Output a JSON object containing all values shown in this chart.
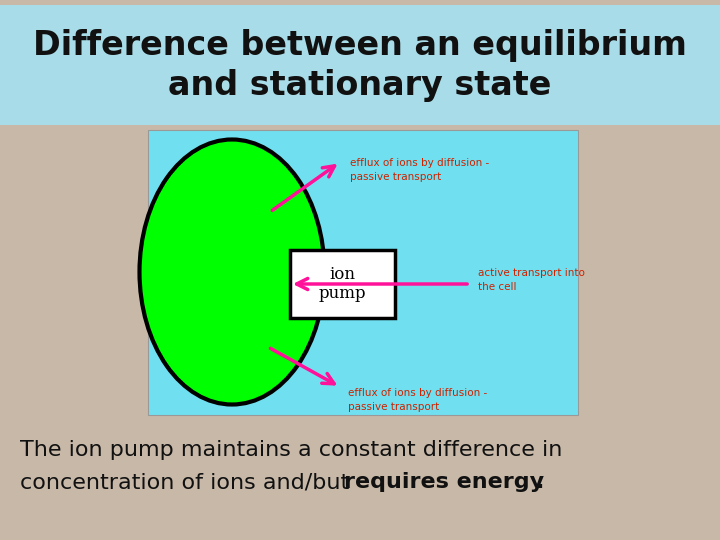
{
  "title_line1": "Difference between an equilibrium",
  "title_line2": "and stationary state",
  "title_bg_color": "#a8dce8",
  "slide_bg_color": "#c8b8a8",
  "diagram_bg_color": "#70e0f0",
  "ellipse_color": "#00ff00",
  "ellipse_edge_color": "#000000",
  "box_text": "ion\npump",
  "box_bg": "#ffffff",
  "box_edge": "#000000",
  "arrow_color": "#ff1199",
  "label_color_red": "#cc2200",
  "efflux_top_text": "efflux of ions by diffusion -\npassive transport",
  "efflux_bottom_text": "efflux of ions by diffusion -\npassive transport",
  "active_transport_text": "active transport into\nthe cell",
  "bottom_line1": "The ion pump maintains a constant difference in",
  "bottom_line2_normal": "concentration of ions and/but ",
  "bottom_line2_bold": "requires energy",
  "bottom_line2_end": "."
}
